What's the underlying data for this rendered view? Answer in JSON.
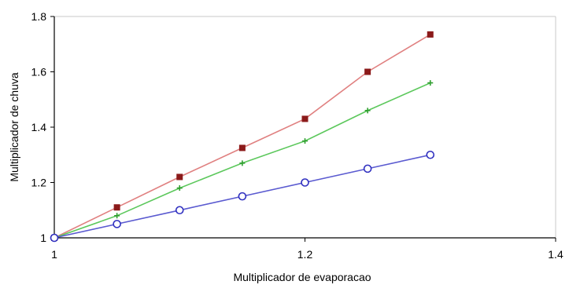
{
  "chart_data": {
    "type": "line",
    "title": "",
    "xlabel": "Multiplicador de evaporacao",
    "ylabel": "Multiplicador de chuva",
    "xlim": [
      1,
      1.4
    ],
    "ylim": [
      1,
      1.8
    ],
    "xticks": [
      1,
      1.2,
      1.4
    ],
    "xtick_labels": [
      "1",
      "1.2",
      "1.4"
    ],
    "yticks": [
      1,
      1.2,
      1.4,
      1.6,
      1.8
    ],
    "ytick_labels": [
      "1",
      "1.2",
      "1.4",
      "1.6",
      "1.8"
    ],
    "grid": false,
    "legend": "none",
    "x": [
      1.0,
      1.05,
      1.1,
      1.15,
      1.2,
      1.25,
      1.3
    ],
    "series": [
      {
        "marker": "square",
        "color": "#8b1a1a",
        "line_color": "#e08080",
        "values": [
          1.0,
          1.11,
          1.22,
          1.325,
          1.43,
          1.6,
          1.735
        ]
      },
      {
        "marker": "plus",
        "color": "#2e9e2e",
        "line_color": "#5cc85c",
        "values": [
          1.0,
          1.08,
          1.18,
          1.27,
          1.35,
          1.46,
          1.56
        ]
      },
      {
        "marker": "circle",
        "color": "#3030c0",
        "line_color": "#5a5ad0",
        "values": [
          1.0,
          1.05,
          1.1,
          1.15,
          1.2,
          1.25,
          1.3
        ]
      }
    ]
  }
}
